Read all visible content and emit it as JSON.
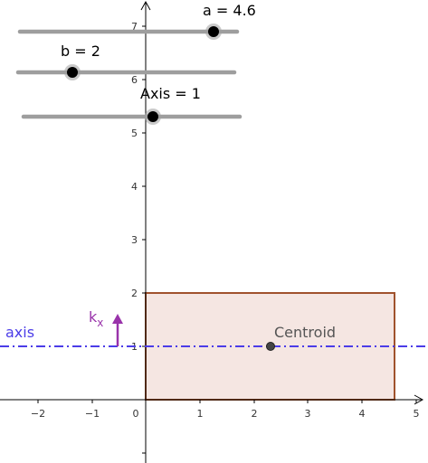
{
  "sliders": {
    "a": {
      "label": "a = 4.6",
      "value": 4.6,
      "min": -5,
      "max": 5
    },
    "b": {
      "label": "b = 2",
      "value": 2,
      "min": -5,
      "max": 5
    },
    "axis": {
      "label": "Axis = 1",
      "value": 1,
      "min": -5,
      "max": 5
    }
  },
  "axes": {
    "x_ticks": [
      "−2",
      "−1",
      "0",
      "1",
      "2",
      "3",
      "4",
      "5"
    ],
    "y_ticks": [
      "1",
      "2",
      "3",
      "4",
      "5",
      "6",
      "7"
    ],
    "origin_label": "0"
  },
  "labels": {
    "axis_line": "axis",
    "moment": "k",
    "moment_sub": "x",
    "centroid": "Centroid"
  },
  "colors": {
    "rectangle_stroke": "#A0522D",
    "rectangle_fill": "#F5E6E2",
    "axis_line": "#4B3CE8",
    "moment_arrow": "#9933AA",
    "slider_track": "#9E9E9E",
    "slider_point": "#000000",
    "centroid_point": "#444444"
  },
  "shapes": {
    "rectangle": {
      "x": 0,
      "y": 0,
      "width": 4.6,
      "height": 2
    },
    "centroid": {
      "x": 2.3,
      "y": 1
    }
  }
}
